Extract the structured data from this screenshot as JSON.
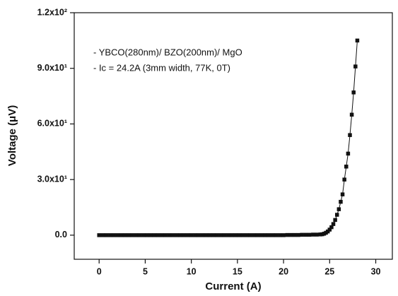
{
  "chart_data": {
    "type": "line",
    "marker": "square",
    "color": "#111111",
    "x_label": "Current (A)",
    "y_label": "Voltage (μV)",
    "annotations": [
      "- YBCO(280nm)/ BZO(200nm)/ MgO",
      "-  Ic = 24.2A (3mm width, 77K, 0T)"
    ],
    "xlim": [
      -2.7,
      31.8
    ],
    "xticks": [
      0,
      5,
      10,
      15,
      20,
      25,
      30
    ],
    "ylim": [
      -13,
      120
    ],
    "yticks": [
      {
        "value": 0,
        "label": "0.0"
      },
      {
        "value": 30,
        "label": "3.0x10¹"
      },
      {
        "value": 60,
        "label": "6.0x10¹"
      },
      {
        "value": 90,
        "label": "9.0x10¹"
      },
      {
        "value": 120,
        "label": "1.2x10²"
      }
    ],
    "x": [
      0,
      0.4,
      0.8,
      1.2,
      1.6,
      2,
      2.4,
      2.8,
      3.2,
      3.6,
      4,
      4.4,
      4.8,
      5.2,
      5.6,
      6,
      6.4,
      6.8,
      7.2,
      7.6,
      8,
      8.4,
      8.8,
      9.2,
      9.6,
      10,
      10.4,
      10.8,
      11.2,
      11.6,
      12,
      12.4,
      12.8,
      13.2,
      13.6,
      14,
      14.4,
      14.8,
      15.2,
      15.6,
      16,
      16.4,
      16.8,
      17.2,
      17.6,
      18,
      18.4,
      18.8,
      19.2,
      19.6,
      20,
      20.4,
      20.8,
      21.2,
      21.6,
      22,
      22.4,
      22.8,
      23.2,
      23.6,
      24,
      24.2,
      24.4,
      24.6,
      24.8,
      25,
      25.2,
      25.4,
      25.6,
      25.8,
      26,
      26.2,
      26.4,
      26.6,
      26.8,
      27,
      27.2,
      27.4,
      27.6,
      27.8,
      28
    ],
    "values": [
      0,
      0,
      0,
      0,
      0,
      0,
      0,
      0,
      0,
      0,
      0,
      0,
      0,
      0,
      0,
      0,
      0,
      0,
      0,
      0,
      0,
      0,
      0,
      0,
      0,
      0,
      0,
      0,
      0,
      0,
      0,
      0,
      0,
      0,
      0,
      0,
      0,
      0,
      0,
      0,
      0,
      0,
      0,
      0,
      0,
      0,
      0,
      0,
      0,
      0,
      0,
      0.1,
      0.1,
      0.1,
      0.1,
      0.2,
      0.2,
      0.2,
      0.3,
      0.3,
      0.4,
      0.5,
      0.8,
      1.3,
      2,
      3,
      4.3,
      6,
      8.2,
      11,
      14,
      18,
      22,
      30,
      37,
      44,
      54,
      65,
      77,
      91,
      105
    ]
  }
}
